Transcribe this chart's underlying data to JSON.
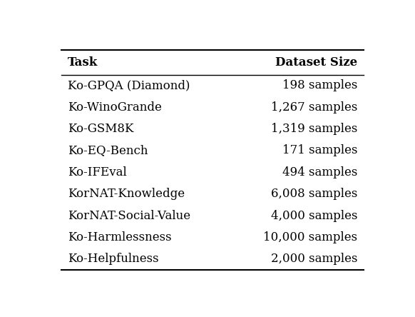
{
  "tasks": [
    "Ko-GPQA (Diamond)",
    "Ko-WinoGrande",
    "Ko-GSM8K",
    "Ko-EQ-Bench",
    "Ko-IFEval",
    "KorNAT-Knowledge",
    "KorNAT-Social-Value",
    "Ko-Harmlessness",
    "Ko-Helpfulness"
  ],
  "sizes": [
    "198 samples",
    "1,267 samples",
    "1,319 samples",
    "171 samples",
    "494 samples",
    "6,008 samples",
    "4,000 samples",
    "10,000 samples",
    "2,000 samples"
  ],
  "col_headers": [
    "Task",
    "Dataset Size"
  ],
  "background_color": "#ffffff",
  "font_size": 12,
  "header_font_size": 12
}
